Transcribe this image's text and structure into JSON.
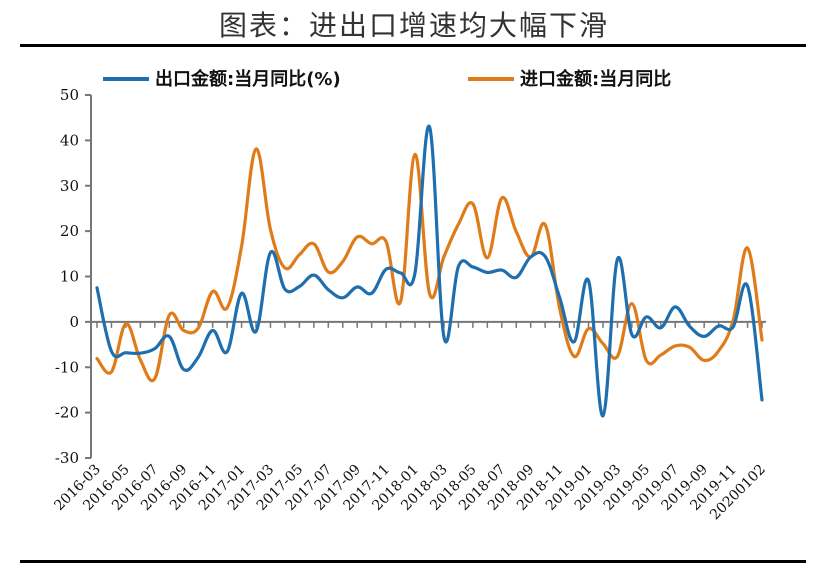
{
  "title": "图表：进出口增速均大幅下滑",
  "chart_data": {
    "type": "line",
    "title": "",
    "xlabel": "",
    "ylabel": "",
    "ylim": [
      -30,
      50
    ],
    "yticks": [
      50,
      40,
      30,
      20,
      10,
      0,
      -10,
      -20,
      -30
    ],
    "grid": false,
    "legend_position": "top",
    "x": [
      "2016-03",
      "2016-04",
      "2016-05",
      "2016-06",
      "2016-07",
      "2016-08",
      "2016-09",
      "2016-10",
      "2016-11",
      "2016-12",
      "2017-01",
      "2017-02",
      "2017-03",
      "2017-04",
      "2017-05",
      "2017-06",
      "2017-07",
      "2017-08",
      "2017-09",
      "2017-10",
      "2017-11",
      "2017-12",
      "2018-01",
      "2018-02",
      "2018-03",
      "2018-04",
      "2018-05",
      "2018-06",
      "2018-07",
      "2018-08",
      "2018-09",
      "2018-10",
      "2018-11",
      "2018-12",
      "2019-01",
      "2019-02",
      "2019-03",
      "2019-04",
      "2019-05",
      "2019-06",
      "2019-07",
      "2019-08",
      "2019-09",
      "2019-10",
      "2019-11",
      "2019-12",
      "202001-02"
    ],
    "xtick_labels": [
      "2016-03",
      "2016-05",
      "2016-07",
      "2016-09",
      "2016-11",
      "2017-01",
      "2017-03",
      "2017-05",
      "2017-07",
      "2017-09",
      "2017-11",
      "2018-01",
      "2018-03",
      "2018-05",
      "2018-07",
      "2018-09",
      "2018-11",
      "2019-01",
      "2019-03",
      "2019-05",
      "2019-07",
      "2019-09",
      "2019-11",
      "20200102"
    ],
    "series": [
      {
        "name": "出口金额:当月同比(%)",
        "color": "#1f6fae",
        "values": [
          7.5,
          -6.5,
          -6.8,
          -6.9,
          -5.9,
          -3.2,
          -10.5,
          -7.8,
          -1.9,
          -6.6,
          6.3,
          -2.1,
          15.3,
          7.2,
          7.8,
          10.3,
          7.1,
          5.3,
          7.7,
          6.3,
          11.6,
          10.8,
          10.8,
          43.0,
          -3.4,
          12.2,
          12.1,
          10.9,
          11.4,
          9.8,
          14.3,
          14.4,
          5.4,
          -4.4,
          9.1,
          -20.7,
          13.8,
          -2.8,
          1.1,
          -1.3,
          3.3,
          -1.0,
          -3.2,
          -0.9,
          -1.1,
          7.9,
          -17.2
        ]
      },
      {
        "name": "进口金额:当月同比",
        "color": "#e07b1a",
        "values": [
          -8.1,
          -11.0,
          -0.4,
          -8.4,
          -12.5,
          1.5,
          -1.9,
          -1.4,
          6.7,
          3.1,
          16.7,
          38.1,
          20.3,
          11.9,
          14.8,
          17.2,
          11.0,
          13.3,
          18.7,
          17.2,
          17.7,
          4.5,
          36.9,
          6.3,
          14.4,
          21.5,
          26.0,
          14.1,
          27.3,
          19.9,
          14.3,
          21.4,
          3.0,
          -7.6,
          -1.5,
          -4.8,
          -7.6,
          4.0,
          -8.5,
          -7.3,
          -5.3,
          -5.6,
          -8.5,
          -6.4,
          0.3,
          16.3,
          -4.0
        ]
      }
    ]
  }
}
